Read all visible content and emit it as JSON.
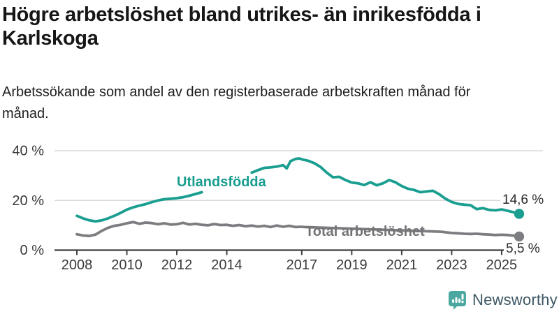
{
  "footer": {
    "brand": "Newsworthy"
  },
  "chart_data": {
    "type": "line",
    "title": "Högre arbetslöshet bland utrikes- än inrikesfödda i Karlskoga",
    "subtitle": "Arbetssökande som andel av den registerbaserade arbetskraften månad för månad.",
    "unit": "%",
    "xlabel": "",
    "ylabel": "",
    "ylim": [
      0,
      40
    ],
    "xlim": [
      2008,
      2025.7
    ],
    "grid": "horizontal",
    "legend_position": "inline-labels",
    "y_ticks": [
      0,
      20,
      40
    ],
    "y_tick_labels": [
      "0 %",
      "20 %",
      "40 %"
    ],
    "x_ticks": [
      2008,
      2010,
      2012,
      2014,
      2017,
      2019,
      2021,
      2023,
      2025
    ],
    "x_tick_labels": [
      "2008",
      "2010",
      "2012",
      "2014",
      "2017",
      "2019",
      "2021",
      "2023",
      "2025"
    ],
    "colors": {
      "grid": "#d8d8d8",
      "axis": "#3f3f3f",
      "tick_text": "#3a3a3a"
    },
    "series": [
      {
        "name": "Utlandsfödda",
        "color": "#199e90",
        "end_value": 14.6,
        "end_label": "14,6 %",
        "label_gap_x": [
          2013.05,
          2014.99
        ],
        "x": [
          2008.0,
          2008.25,
          2008.5,
          2008.75,
          2009.0,
          2009.25,
          2009.5,
          2009.75,
          2010.0,
          2010.25,
          2010.5,
          2010.75,
          2011.0,
          2011.25,
          2011.5,
          2011.75,
          2012.0,
          2012.25,
          2012.5,
          2012.75,
          2013.0,
          2013.25,
          2013.5,
          2013.75,
          2014.0,
          2014.25,
          2014.5,
          2014.75,
          2015.0,
          2015.25,
          2015.5,
          2015.75,
          2016.0,
          2016.25,
          2016.4,
          2016.55,
          2016.75,
          2016.9,
          2017.05,
          2017.25,
          2017.5,
          2017.75,
          2018.0,
          2018.25,
          2018.5,
          2018.75,
          2019.0,
          2019.25,
          2019.5,
          2019.75,
          2020.0,
          2020.25,
          2020.5,
          2020.75,
          2021.0,
          2021.25,
          2021.5,
          2021.75,
          2022.0,
          2022.25,
          2022.5,
          2022.75,
          2023.0,
          2023.25,
          2023.5,
          2023.75,
          2024.0,
          2024.25,
          2024.5,
          2024.75,
          2025.0,
          2025.25,
          2025.5,
          2025.7
        ],
        "y": [
          13.8,
          12.8,
          12.0,
          11.6,
          12.0,
          12.8,
          13.8,
          15.0,
          16.3,
          17.2,
          17.9,
          18.5,
          19.3,
          20.0,
          20.5,
          20.7,
          20.9,
          21.3,
          21.9,
          22.6,
          23.3,
          24.2,
          25.3,
          26.4,
          27.3,
          28.3,
          29.3,
          30.2,
          31.2,
          32.2,
          33.1,
          33.3,
          33.6,
          34.2,
          32.9,
          35.8,
          36.7,
          36.9,
          36.4,
          36.0,
          35.0,
          33.5,
          31.2,
          29.3,
          29.5,
          28.2,
          27.2,
          26.9,
          26.2,
          27.3,
          26.1,
          26.9,
          28.2,
          27.3,
          25.8,
          24.7,
          24.2,
          23.3,
          23.6,
          23.9,
          22.5,
          20.7,
          19.4,
          18.6,
          18.3,
          18.1,
          16.5,
          16.9,
          16.2,
          16.0,
          16.4,
          15.8,
          15.2,
          14.6
        ]
      },
      {
        "name": "Total arbetslöshet",
        "color": "#7c7d80",
        "end_value": 5.5,
        "end_label": "5,5 %",
        "label_gap_x": [
          2017.15,
          2022.55
        ],
        "x": [
          2008.0,
          2008.25,
          2008.5,
          2008.75,
          2009.0,
          2009.25,
          2009.5,
          2009.75,
          2010.0,
          2010.25,
          2010.5,
          2010.75,
          2011.0,
          2011.25,
          2011.5,
          2011.75,
          2012.0,
          2012.25,
          2012.5,
          2012.75,
          2013.0,
          2013.25,
          2013.5,
          2013.75,
          2014.0,
          2014.25,
          2014.5,
          2014.75,
          2015.0,
          2015.25,
          2015.5,
          2015.75,
          2016.0,
          2016.25,
          2016.5,
          2016.75,
          2017.0,
          2017.1,
          2022.6,
          2022.75,
          2023.0,
          2023.25,
          2023.5,
          2023.75,
          2024.0,
          2024.25,
          2024.5,
          2024.75,
          2025.0,
          2025.25,
          2025.5,
          2025.7
        ],
        "y": [
          6.4,
          5.9,
          5.7,
          6.3,
          7.8,
          9.0,
          9.8,
          10.2,
          10.8,
          11.3,
          10.6,
          11.1,
          10.9,
          10.4,
          10.8,
          10.3,
          10.4,
          11.0,
          10.3,
          10.6,
          10.2,
          10.0,
          10.5,
          10.1,
          10.2,
          9.8,
          10.1,
          9.6,
          9.9,
          9.5,
          9.8,
          9.3,
          9.9,
          9.4,
          9.8,
          9.3,
          9.4,
          9.3,
          7.4,
          7.2,
          6.9,
          6.8,
          6.6,
          6.5,
          6.6,
          6.4,
          6.3,
          6.1,
          6.2,
          6.1,
          5.8,
          5.5
        ]
      }
    ]
  }
}
